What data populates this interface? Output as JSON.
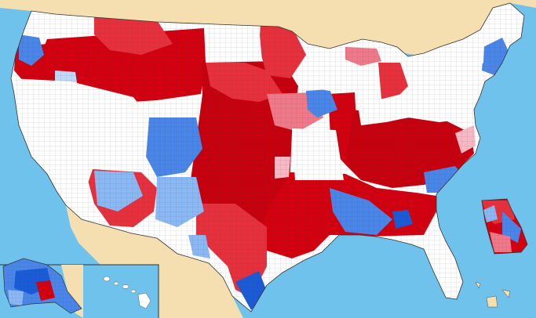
{
  "map": {
    "colors": {
      "ocean": "#6ec2ec",
      "land_outside": "#f5deb0",
      "no_data": "#ffffff",
      "border": "#555555",
      "strong_red": "#d40010",
      "medium_red": "#e8303c",
      "light_red": "#f07888",
      "pale_red": "#f8b8c4",
      "strong_blue": "#1a5bd8",
      "medium_blue": "#4a86ea",
      "light_blue": "#8ab8f4",
      "pale_blue": "#c0d8fa"
    },
    "insets": [
      "alaska",
      "hawaii"
    ]
  }
}
